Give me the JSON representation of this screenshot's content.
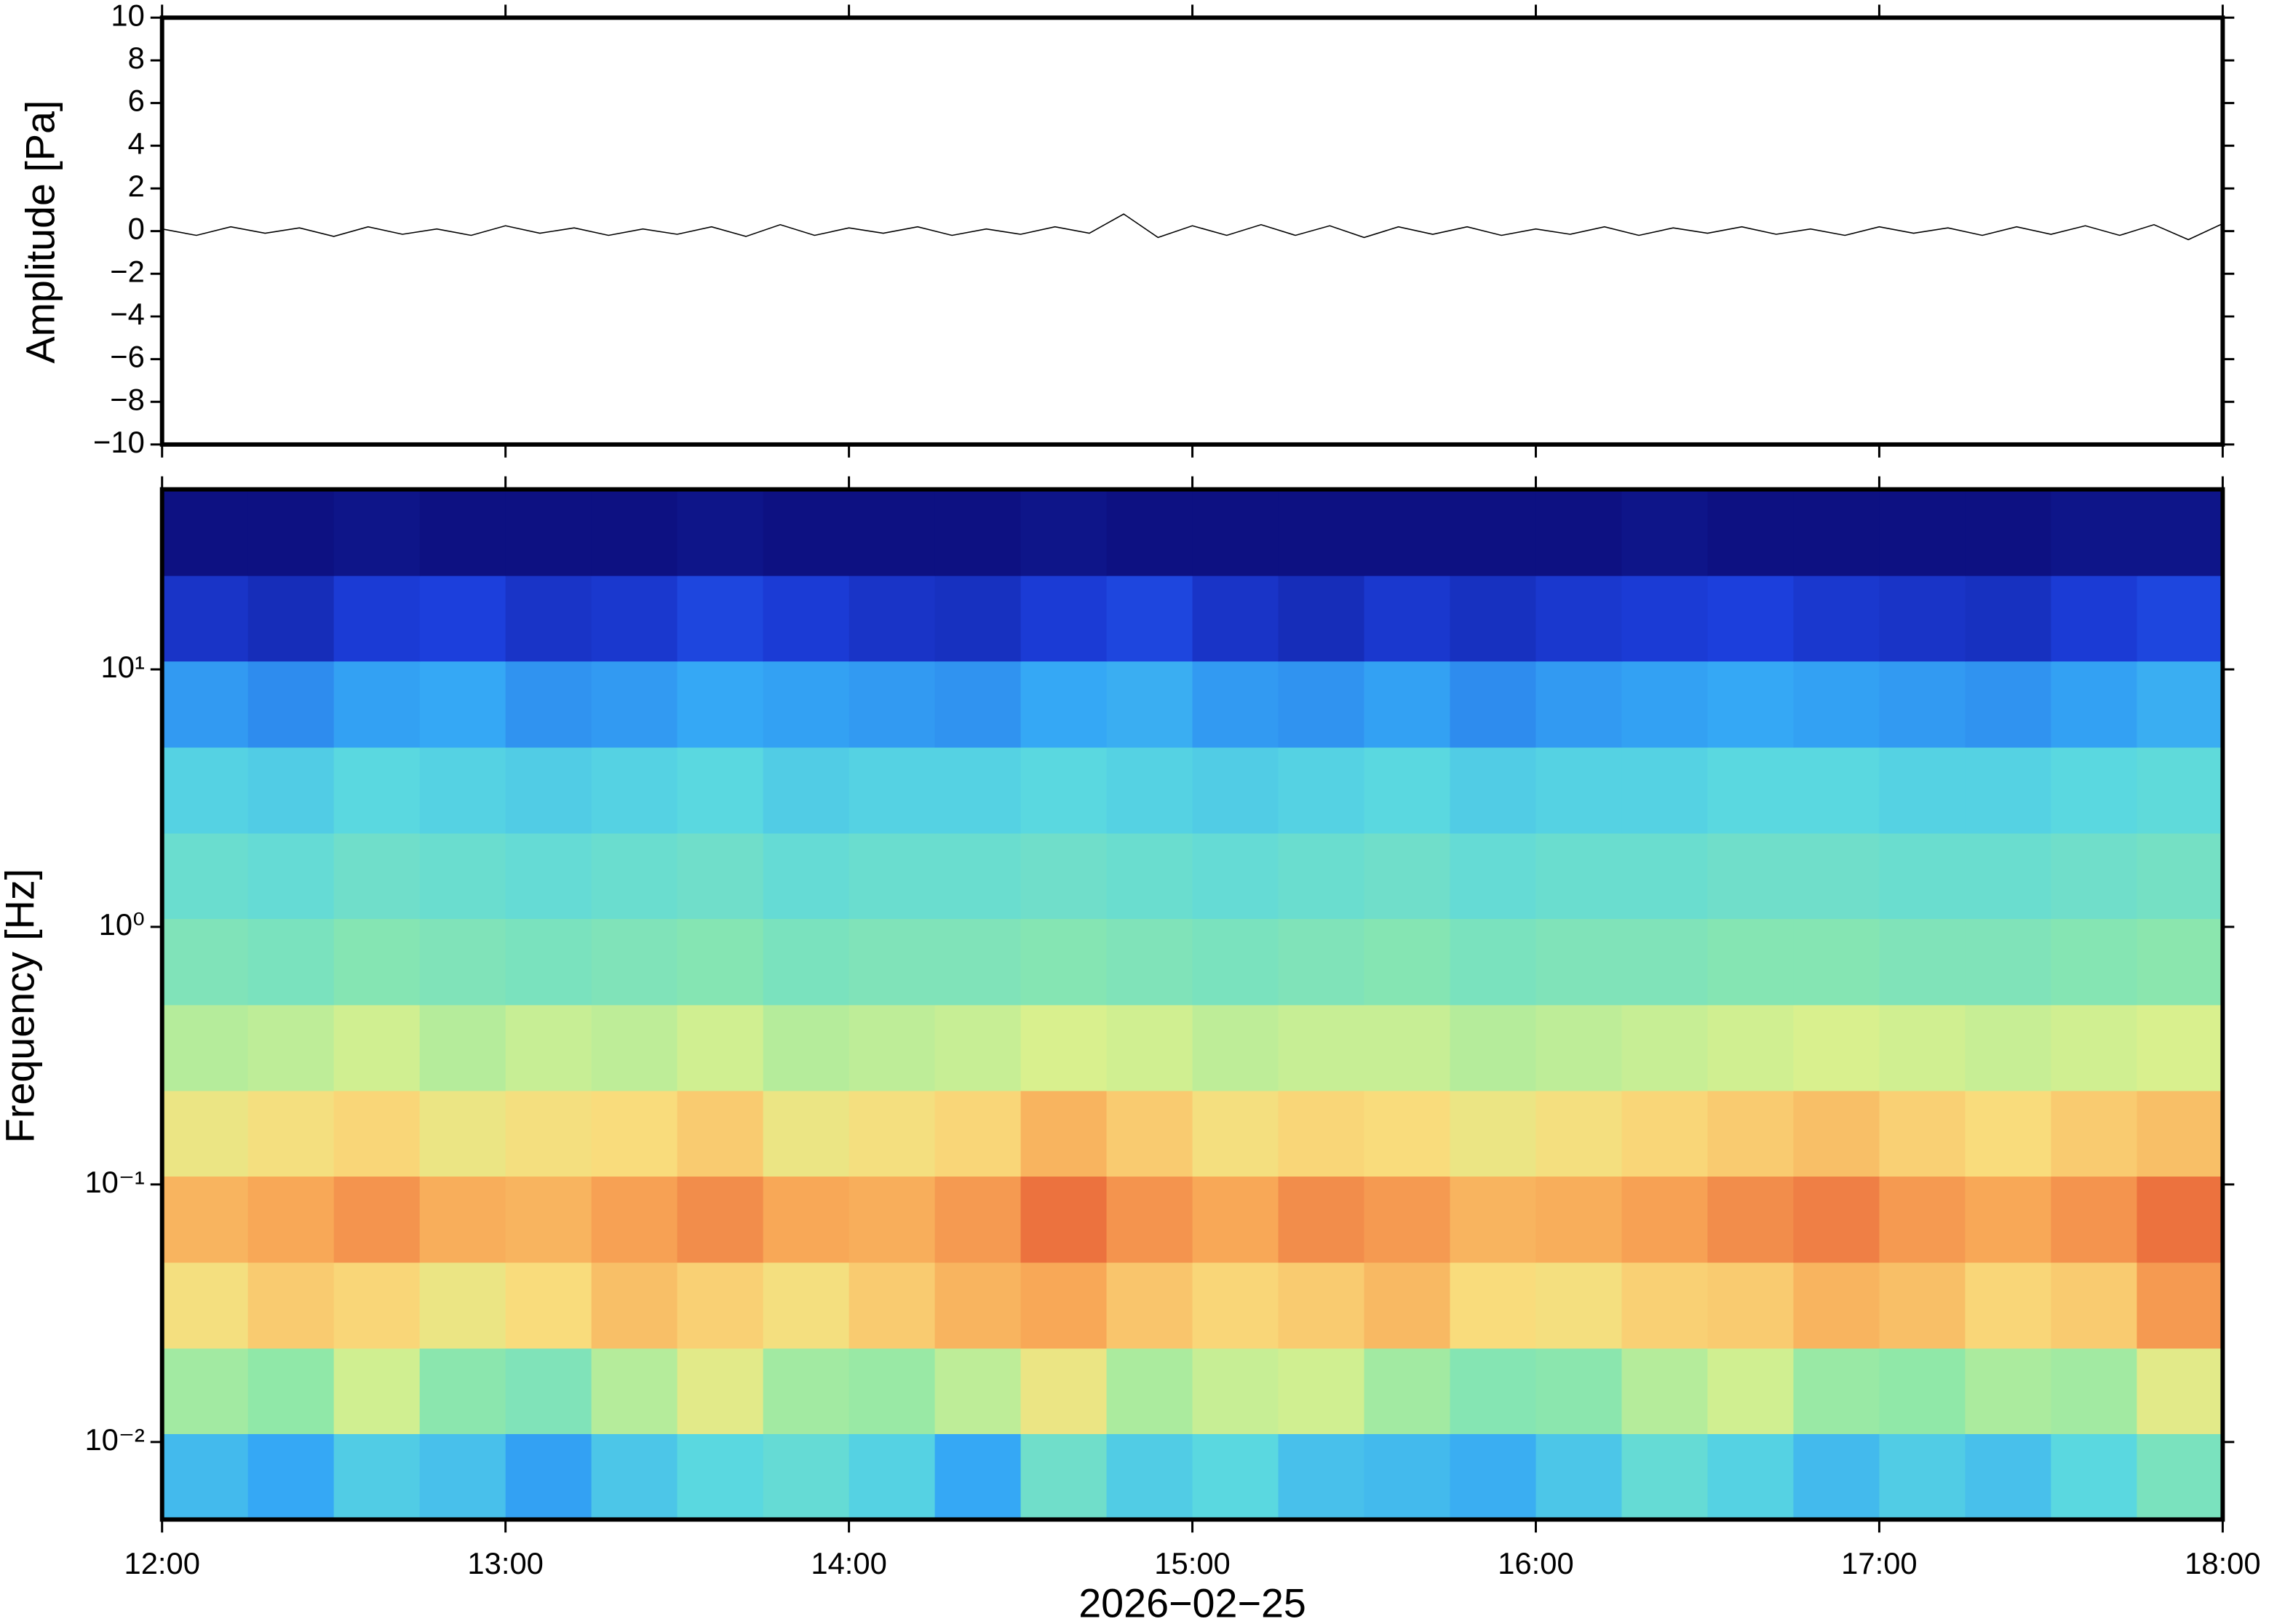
{
  "chart_data": [
    {
      "type": "line",
      "ylabel": "Amplitude [Pa]",
      "xlim": [
        12,
        18
      ],
      "ylim": [
        -10,
        10
      ],
      "yticks": [
        {
          "value": -10,
          "label": "−10"
        },
        {
          "value": -8,
          "label": "−8"
        },
        {
          "value": -6,
          "label": "−6"
        },
        {
          "value": -4,
          "label": "−4"
        },
        {
          "value": -2,
          "label": "−2"
        },
        0,
        2,
        4,
        6,
        8,
        10
      ],
      "color": "#000000",
      "x": [
        12,
        12.1,
        12.2,
        12.3,
        12.4,
        12.5,
        12.6,
        12.7,
        12.8,
        12.9,
        13,
        13.1,
        13.2,
        13.3,
        13.4,
        13.5,
        13.6,
        13.7,
        13.8,
        13.9,
        14,
        14.1,
        14.2,
        14.3,
        14.4,
        14.5,
        14.6,
        14.7,
        14.8,
        14.9,
        15,
        15.1,
        15.2,
        15.3,
        15.4,
        15.5,
        15.6,
        15.7,
        15.8,
        15.9,
        16,
        16.1,
        16.2,
        16.3,
        16.4,
        16.5,
        16.6,
        16.7,
        16.8,
        16.9,
        17,
        17.1,
        17.2,
        17.3,
        17.4,
        17.5,
        17.6,
        17.7,
        17.8,
        17.9,
        18
      ],
      "values": [
        0.1,
        -0.2,
        0.2,
        -0.1,
        0.15,
        -0.25,
        0.2,
        -0.15,
        0.1,
        -0.2,
        0.25,
        -0.1,
        0.15,
        -0.2,
        0.1,
        -0.15,
        0.2,
        -0.25,
        0.3,
        -0.2,
        0.15,
        -0.1,
        0.2,
        -0.2,
        0.1,
        -0.15,
        0.2,
        -0.1,
        0.8,
        -0.3,
        0.25,
        -0.2,
        0.3,
        -0.2,
        0.25,
        -0.3,
        0.2,
        -0.15,
        0.2,
        -0.2,
        0.1,
        -0.15,
        0.2,
        -0.2,
        0.15,
        -0.1,
        0.2,
        -0.15,
        0.1,
        -0.2,
        0.2,
        -0.1,
        0.15,
        -0.2,
        0.2,
        -0.15,
        0.25,
        -0.2,
        0.3,
        -0.4,
        0.35
      ]
    },
    {
      "type": "heatmap",
      "ylabel": "Frequency [Hz]",
      "xlabel": "2026−02−25",
      "xlim": [
        12,
        18
      ],
      "ylim": [
        0.005,
        50
      ],
      "ylog": true,
      "xticks": [
        {
          "value": 12,
          "label": "12:00"
        },
        {
          "value": 13,
          "label": "13:00"
        },
        {
          "value": 14,
          "label": "14:00"
        },
        {
          "value": 15,
          "label": "15:00"
        },
        {
          "value": 16,
          "label": "16:00"
        },
        {
          "value": 17,
          "label": "17:00"
        },
        {
          "value": 18,
          "label": "18:00"
        }
      ],
      "yticks": [
        {
          "value": 0.01,
          "label": "10⁻²"
        },
        {
          "value": 0.1,
          "label": "10⁻¹"
        },
        {
          "value": 1,
          "label": "10⁰"
        },
        {
          "value": 10,
          "label": "10¹"
        }
      ],
      "x_bins": [
        12,
        12.25,
        12.5,
        12.75,
        13,
        13.25,
        13.5,
        13.75,
        14,
        14.25,
        14.5,
        14.75,
        15,
        15.25,
        15.5,
        15.75,
        16,
        16.25,
        16.5,
        16.75,
        17,
        17.25,
        17.5,
        17.75,
        18
      ],
      "y_bins": [
        0.005,
        0.0108,
        0.0232,
        0.05,
        0.108,
        0.232,
        0.5,
        1.08,
        2.32,
        5,
        10.8,
        23.2,
        50
      ],
      "zlim": [
        0,
        1
      ],
      "colorscale": [
        [
          0,
          "#0b0a74"
        ],
        [
          0.15,
          "#1c3fdc"
        ],
        [
          0.3,
          "#35a8f5"
        ],
        [
          0.38,
          "#5ad8e0"
        ],
        [
          0.48,
          "#90e8a8"
        ],
        [
          0.56,
          "#d9f08e"
        ],
        [
          0.63,
          "#f9dc7c"
        ],
        [
          0.72,
          "#f8a857"
        ],
        [
          0.85,
          "#e5502f"
        ],
        [
          1,
          "#a81010"
        ]
      ],
      "z": [
        [
          0.33,
          0.3,
          0.36,
          0.34,
          0.29,
          0.35,
          0.38,
          0.4,
          0.37,
          0.3,
          0.42,
          0.36,
          0.38,
          0.34,
          0.33,
          0.31,
          0.35,
          0.4,
          0.37,
          0.33,
          0.36,
          0.34,
          0.38,
          0.44
        ],
        [
          0.5,
          0.48,
          0.55,
          0.47,
          0.45,
          0.52,
          0.58,
          0.5,
          0.49,
          0.53,
          0.6,
          0.51,
          0.54,
          0.55,
          0.5,
          0.46,
          0.47,
          0.52,
          0.55,
          0.49,
          0.48,
          0.51,
          0.5,
          0.58
        ],
        [
          0.62,
          0.66,
          0.64,
          0.6,
          0.63,
          0.68,
          0.65,
          0.62,
          0.66,
          0.7,
          0.72,
          0.67,
          0.64,
          0.66,
          0.69,
          0.63,
          0.62,
          0.65,
          0.66,
          0.7,
          0.68,
          0.64,
          0.66,
          0.74
        ],
        [
          0.7,
          0.72,
          0.75,
          0.71,
          0.7,
          0.73,
          0.76,
          0.72,
          0.71,
          0.74,
          0.8,
          0.75,
          0.72,
          0.76,
          0.74,
          0.7,
          0.71,
          0.73,
          0.76,
          0.78,
          0.74,
          0.72,
          0.75,
          0.8
        ],
        [
          0.6,
          0.62,
          0.64,
          0.6,
          0.62,
          0.63,
          0.66,
          0.6,
          0.62,
          0.64,
          0.7,
          0.66,
          0.62,
          0.64,
          0.63,
          0.6,
          0.62,
          0.64,
          0.66,
          0.68,
          0.65,
          0.63,
          0.66,
          0.68
        ],
        [
          0.52,
          0.53,
          0.55,
          0.52,
          0.54,
          0.53,
          0.55,
          0.52,
          0.53,
          0.54,
          0.56,
          0.55,
          0.53,
          0.54,
          0.54,
          0.52,
          0.53,
          0.54,
          0.55,
          0.56,
          0.55,
          0.54,
          0.55,
          0.56
        ],
        [
          0.45,
          0.44,
          0.46,
          0.45,
          0.44,
          0.45,
          0.46,
          0.44,
          0.45,
          0.45,
          0.46,
          0.45,
          0.44,
          0.45,
          0.46,
          0.44,
          0.45,
          0.45,
          0.46,
          0.46,
          0.45,
          0.45,
          0.46,
          0.47
        ],
        [
          0.41,
          0.4,
          0.42,
          0.41,
          0.4,
          0.41,
          0.42,
          0.4,
          0.41,
          0.41,
          0.42,
          0.41,
          0.4,
          0.41,
          0.42,
          0.4,
          0.41,
          0.41,
          0.42,
          0.42,
          0.41,
          0.41,
          0.42,
          0.43
        ],
        [
          0.37,
          0.36,
          0.38,
          0.37,
          0.36,
          0.37,
          0.38,
          0.36,
          0.37,
          0.37,
          0.38,
          0.37,
          0.36,
          0.37,
          0.38,
          0.36,
          0.37,
          0.37,
          0.38,
          0.38,
          0.37,
          0.37,
          0.38,
          0.39
        ],
        [
          0.28,
          0.26,
          0.29,
          0.3,
          0.27,
          0.28,
          0.3,
          0.29,
          0.28,
          0.27,
          0.3,
          0.31,
          0.28,
          0.27,
          0.29,
          0.26,
          0.28,
          0.29,
          0.3,
          0.29,
          0.28,
          0.27,
          0.29,
          0.31
        ],
        [
          0.12,
          0.1,
          0.14,
          0.15,
          0.12,
          0.13,
          0.16,
          0.14,
          0.12,
          0.11,
          0.14,
          0.16,
          0.12,
          0.1,
          0.13,
          0.11,
          0.13,
          0.14,
          0.15,
          0.13,
          0.12,
          0.11,
          0.14,
          0.16
        ],
        [
          0.02,
          0.02,
          0.03,
          0.02,
          0.02,
          0.02,
          0.03,
          0.02,
          0.02,
          0.02,
          0.03,
          0.02,
          0.02,
          0.02,
          0.02,
          0.02,
          0.02,
          0.03,
          0.02,
          0.02,
          0.02,
          0.02,
          0.03,
          0.03
        ]
      ]
    }
  ]
}
